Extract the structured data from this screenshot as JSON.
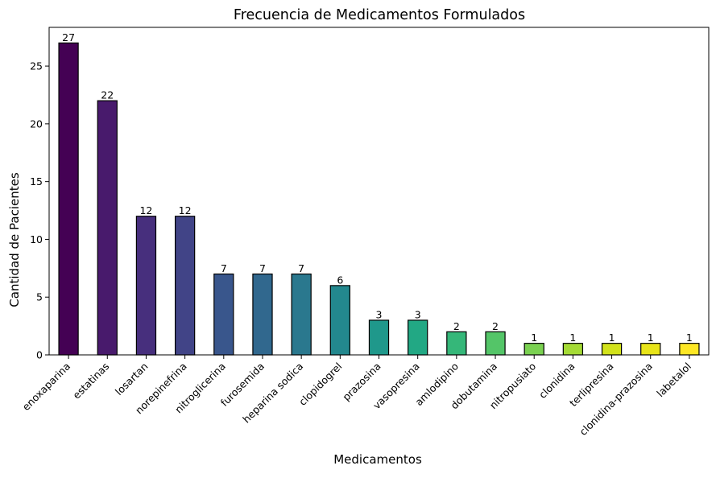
{
  "chart_data": {
    "type": "bar",
    "title": "Frecuencia de Medicamentos Formulados",
    "xlabel": "Medicamentos",
    "ylabel": "Cantidad de Pacientes",
    "categories": [
      "enoxaparina",
      "estatinas",
      "losartan",
      "norepinefrina",
      "nitroglicerina",
      "furosemida",
      "heparina sodica",
      "clopidogrel",
      "prazosina",
      "vasopresina",
      "amlodipino",
      "dobutamina",
      "nitropusiato",
      "clonidina",
      "terlipresina",
      "clonidina-prazosina",
      "labetalol"
    ],
    "values": [
      27,
      22,
      12,
      12,
      7,
      7,
      7,
      6,
      3,
      3,
      2,
      2,
      1,
      1,
      1,
      1,
      1
    ],
    "data_labels": [
      "27",
      "22",
      "12",
      "12",
      "7",
      "7",
      "7",
      "6",
      "3",
      "3",
      "2",
      "2",
      "1",
      "1",
      "1",
      "1",
      "1"
    ],
    "ylim": [
      0,
      28.35
    ],
    "yticks": [
      0,
      5,
      10,
      15,
      20,
      25
    ],
    "ytick_labels": [
      "0",
      "5",
      "10",
      "15",
      "20",
      "25"
    ],
    "grid": false,
    "legend": "none",
    "colormap": "viridis",
    "colors": [
      "#440154",
      "#481a6c",
      "#472f7d",
      "#414487",
      "#39568c",
      "#31688e",
      "#2a788e",
      "#23888e",
      "#1f988b",
      "#22a884",
      "#35b779",
      "#54c568",
      "#7ad151",
      "#a5db36",
      "#d2e21b",
      "#e8e419",
      "#fde725"
    ],
    "edge_color": "#000000"
  }
}
